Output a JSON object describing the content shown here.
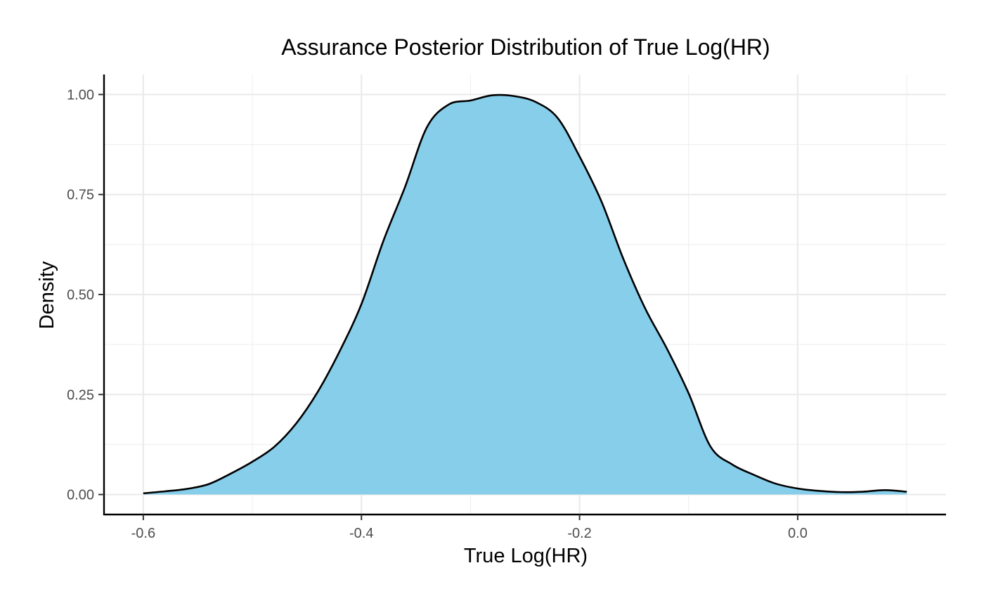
{
  "chart_data": {
    "type": "area",
    "title": "Assurance Posterior Distribution of True Log(HR)",
    "xlabel": "True Log(HR)",
    "ylabel": "Density",
    "xlim": [
      -0.636,
      0.136
    ],
    "ylim": [
      -0.05,
      1.05
    ],
    "x_ticks": [
      -0.6,
      -0.4,
      -0.2,
      0.0
    ],
    "x_tick_labels": [
      "-0.6",
      "-0.4",
      "-0.2",
      "0.0"
    ],
    "y_ticks": [
      0,
      0.25,
      0.5,
      0.75,
      1.0
    ],
    "y_tick_labels": [
      "0.00",
      "0.25",
      "0.50",
      "0.75",
      "1.00"
    ],
    "grid": true,
    "legend": "none",
    "fill_color": "#87CEEB",
    "line_color": "#000000",
    "series": [
      {
        "x": [
          -0.6,
          -0.58,
          -0.56,
          -0.54,
          -0.52,
          -0.5,
          -0.48,
          -0.46,
          -0.44,
          -0.42,
          -0.4,
          -0.38,
          -0.36,
          -0.34,
          -0.32,
          -0.3,
          -0.28,
          -0.26,
          -0.24,
          -0.22,
          -0.2,
          -0.18,
          -0.16,
          -0.14,
          -0.12,
          -0.1,
          -0.08,
          -0.06,
          -0.04,
          -0.02,
          0.0,
          0.02,
          0.04,
          0.06,
          0.08,
          0.1
        ],
        "y": [
          0.003,
          0.008,
          0.014,
          0.026,
          0.052,
          0.082,
          0.119,
          0.177,
          0.257,
          0.358,
          0.476,
          0.633,
          0.769,
          0.918,
          0.975,
          0.985,
          0.998,
          0.996,
          0.981,
          0.941,
          0.845,
          0.733,
          0.59,
          0.466,
          0.365,
          0.253,
          0.12,
          0.075,
          0.049,
          0.027,
          0.015,
          0.009,
          0.006,
          0.007,
          0.011,
          0.007
        ]
      }
    ]
  }
}
